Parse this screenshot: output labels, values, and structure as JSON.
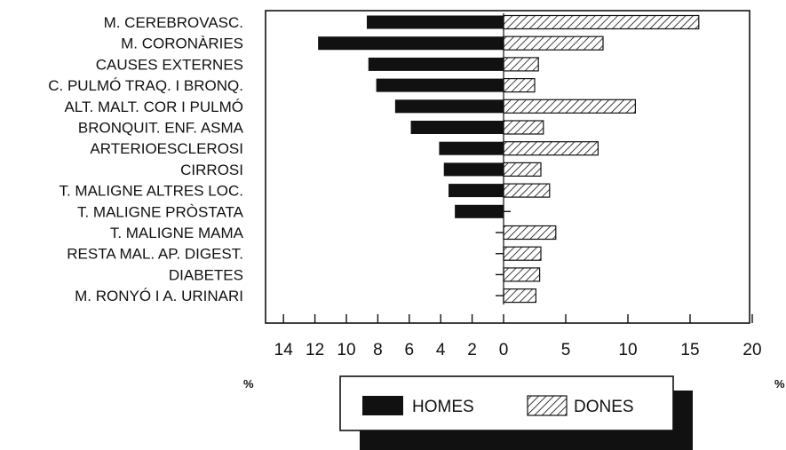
{
  "chart_data": {
    "type": "bar",
    "orientation": "horizontal-diverging",
    "categories": [
      "M. CEREBROVASC.",
      "M. CORONÀRIES",
      "CAUSES EXTERNES",
      "C. PULMÓ TRAQ. I BRONQ.",
      "ALT. MALT. COR I PULMÓ",
      "BRONQUIT. ENF. ASMA",
      "ARTERIOESCLEROSI",
      "CIRROSI",
      "T. MALIGNE ALTRES LOC.",
      "T. MALIGNE PRÒSTATA",
      "T. MALIGNE MAMA",
      "RESTA MAL. AP. DIGEST.",
      "DIABETES",
      "M. RONYÓ I A. URINARI"
    ],
    "series": [
      {
        "name": "HOMES",
        "values": [
          8.7,
          11.8,
          8.6,
          8.1,
          6.9,
          5.9,
          4.1,
          3.8,
          3.5,
          3.1,
          0,
          0,
          0,
          0
        ],
        "color": "#111111",
        "fill": "solid"
      },
      {
        "name": "DONES",
        "values": [
          15.7,
          8.0,
          2.8,
          2.5,
          10.6,
          3.2,
          7.6,
          3.0,
          3.7,
          0.5,
          4.2,
          3.0,
          2.9,
          2.6
        ],
        "color": "#111111",
        "fill": "hatched"
      }
    ],
    "x_left": {
      "ticks": [
        14,
        12,
        10,
        8,
        6,
        4,
        2,
        0
      ],
      "unit": "%",
      "range": [
        14,
        0
      ]
    },
    "x_right": {
      "ticks": [
        0,
        5,
        10,
        15,
        20
      ],
      "unit": "%",
      "range": [
        0,
        20
      ]
    },
    "legend": {
      "placement": "bottom",
      "labels": [
        "HOMES",
        "DONES"
      ]
    }
  }
}
